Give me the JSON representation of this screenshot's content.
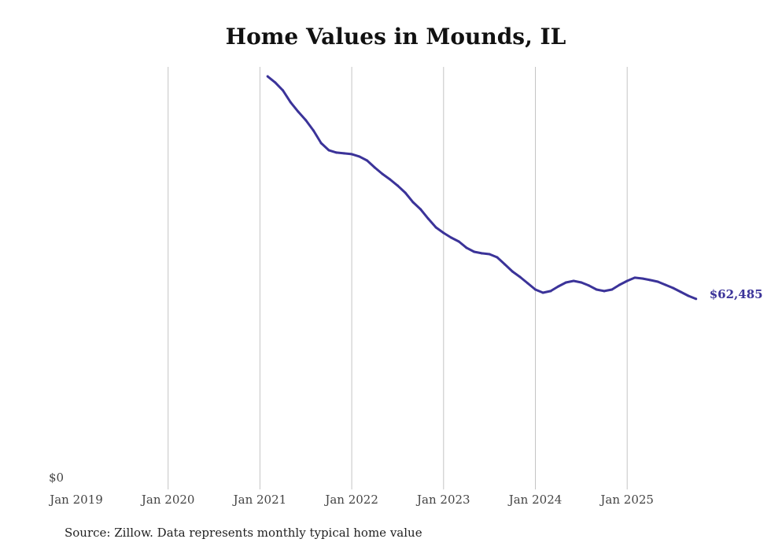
{
  "chart_data": {
    "type": "line",
    "title": "Home Values in Mounds, IL",
    "xlabel": "",
    "ylabel": "",
    "x_ticks": [
      "Jan 2019",
      "Jan 2020",
      "Jan 2021",
      "Jan 2022",
      "Jan 2023",
      "Jan 2024",
      "Jan 2025"
    ],
    "y_ticks": [
      "$0"
    ],
    "ylim": [
      0,
      138300
    ],
    "xlim": [
      "2019-01",
      "2025-12"
    ],
    "grid": "vertical",
    "end_label": "$62,485",
    "series": [
      {
        "name": "Typical home value",
        "color": "#3b3399",
        "start": "2021-02",
        "values": [
          135200,
          133180,
          130610,
          126750,
          123670,
          120840,
          117490,
          113380,
          111070,
          110300,
          110040,
          109780,
          109010,
          107720,
          105410,
          103350,
          101550,
          99500,
          97180,
          94100,
          91780,
          88700,
          85870,
          84070,
          82530,
          81240,
          79190,
          77900,
          77390,
          77130,
          76100,
          73790,
          71470,
          69670,
          67620,
          65560,
          64530,
          65050,
          66590,
          67870,
          68390,
          67870,
          66850,
          65560,
          65050,
          65560,
          67100,
          68390,
          69420,
          69160,
          68650,
          68130,
          67100,
          66070,
          64790,
          63500,
          62485
        ]
      }
    ],
    "source": "Source: Zillow. Data represents monthly typical home value"
  }
}
